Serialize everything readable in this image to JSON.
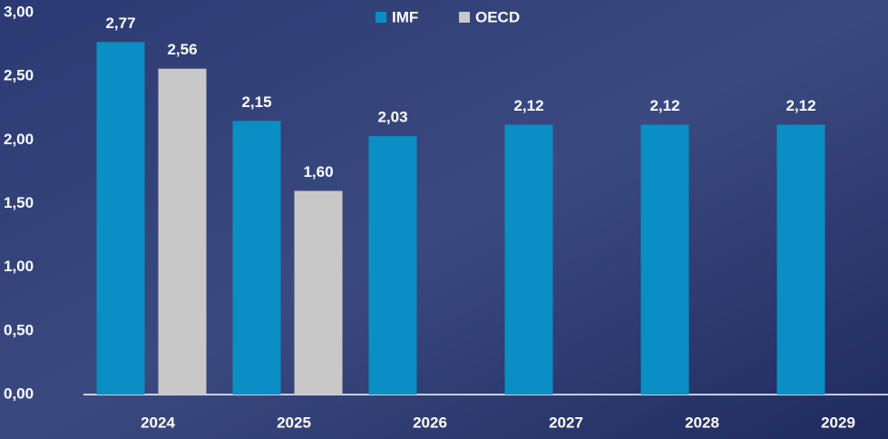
{
  "chart_data": {
    "type": "bar",
    "categories": [
      "2024",
      "2025",
      "2026",
      "2027",
      "2028",
      "2029"
    ],
    "series": [
      {
        "name": "IMF",
        "color": "#0a8ec4",
        "values": [
          2.77,
          2.15,
          2.03,
          2.12,
          2.12,
          2.12
        ],
        "value_labels": [
          "2,77",
          "2,15",
          "2,03",
          "2,12",
          "2,12",
          "2,12"
        ]
      },
      {
        "name": "OECD",
        "color": "#c8c8c8",
        "values": [
          2.56,
          1.6,
          null,
          null,
          null,
          null
        ],
        "value_labels": [
          "2,56",
          "1,60",
          null,
          null,
          null,
          null
        ]
      }
    ],
    "ylim": [
      0,
      3
    ],
    "yticks": [
      {
        "value": 0,
        "label": "0,00"
      },
      {
        "value": 0.5,
        "label": "0,50"
      },
      {
        "value": 1,
        "label": "1,00"
      },
      {
        "value": 1.5,
        "label": "1,50"
      },
      {
        "value": 2,
        "label": "2,00"
      },
      {
        "value": 2.5,
        "label": "2,50"
      },
      {
        "value": 3,
        "label": "3,00"
      }
    ],
    "legend": "top"
  }
}
